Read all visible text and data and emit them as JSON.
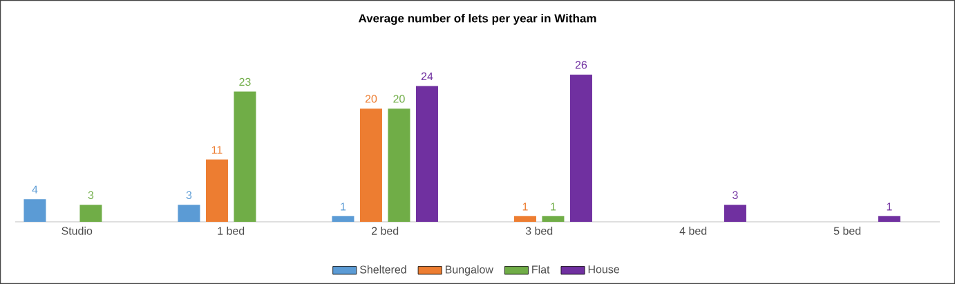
{
  "chart_data": {
    "type": "bar",
    "title": "Average number of lets per year in Witham",
    "categories": [
      "Studio",
      "1 bed",
      "2 bed",
      "3 bed",
      "4 bed",
      "5 bed"
    ],
    "series": [
      {
        "name": "Sheltered",
        "color": "#5b9bd5",
        "values": [
          4,
          3,
          1,
          null,
          null,
          null
        ]
      },
      {
        "name": "Bungalow",
        "color": "#ed7d31",
        "values": [
          null,
          11,
          20,
          1,
          null,
          null
        ]
      },
      {
        "name": "Flat",
        "color": "#70ad47",
        "values": [
          3,
          23,
          20,
          1,
          null,
          null
        ]
      },
      {
        "name": "House",
        "color": "#7030a0",
        "values": [
          null,
          null,
          24,
          26,
          3,
          1
        ]
      }
    ],
    "data_labels": true,
    "grid": false,
    "legend": "bottom"
  }
}
